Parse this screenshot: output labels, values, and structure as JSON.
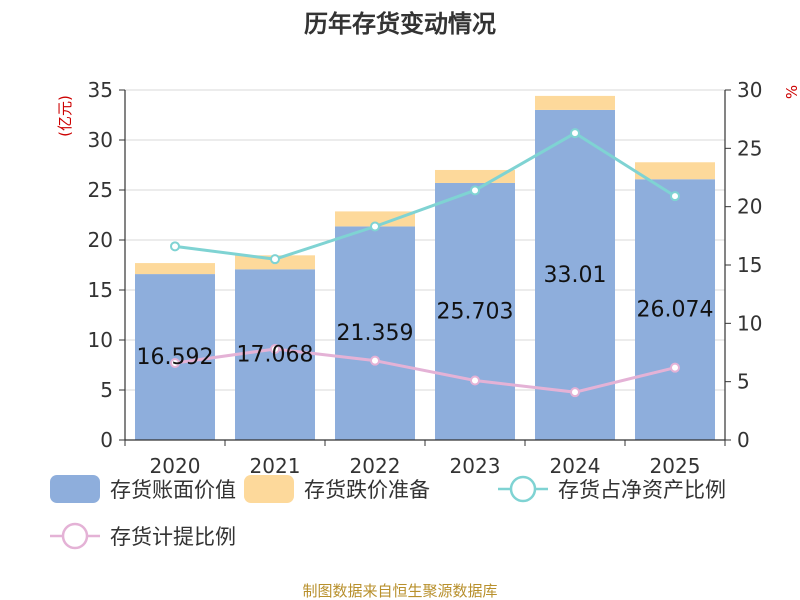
{
  "chart_data": {
    "type": "bar",
    "title": "历年存货变动情况",
    "categories": [
      "2020",
      "2021",
      "2022",
      "2023",
      "2024",
      "2025"
    ],
    "left_axis": {
      "unit": "(亿元)",
      "ylim": [
        0,
        35
      ],
      "ticks": [
        0,
        5,
        10,
        15,
        20,
        25,
        30,
        35
      ]
    },
    "right_axis": {
      "unit": "%",
      "ylim": [
        0,
        30
      ],
      "ticks": [
        0,
        5,
        10,
        15,
        20,
        25,
        30
      ]
    },
    "series": [
      {
        "name": "存货账面价值",
        "kind": "bar",
        "axis": "left",
        "color": "#8eaedc",
        "values": [
          16.592,
          17.068,
          21.359,
          25.703,
          33.01,
          26.074
        ],
        "labels": [
          "16.592",
          "17.068",
          "21.359",
          "25.703",
          "33.01",
          "26.074"
        ]
      },
      {
        "name": "存货跌价准备",
        "kind": "bar",
        "axis": "left",
        "color": "#fdd99b",
        "values": [
          1.1,
          1.4,
          1.5,
          1.3,
          1.4,
          1.7
        ]
      },
      {
        "name": "存货占净资产比例",
        "kind": "line",
        "axis": "right",
        "color": "#7fd3d3",
        "values": [
          16.6,
          15.5,
          18.3,
          21.4,
          26.3,
          20.9
        ]
      },
      {
        "name": "存货计提比例",
        "kind": "line",
        "axis": "right",
        "color": "#e4b2d6",
        "values": [
          6.6,
          7.8,
          6.8,
          5.1,
          4.1,
          6.2
        ]
      }
    ],
    "grid": true,
    "legend_position": "bottom",
    "source": "制图数据来自恒生聚源数据库"
  }
}
